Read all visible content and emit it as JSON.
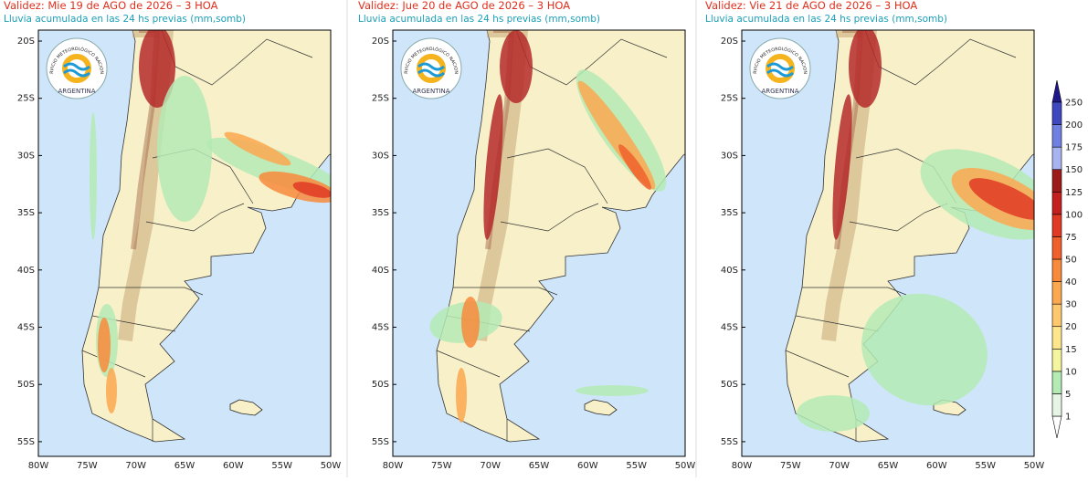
{
  "panels": [
    {
      "title": "Validez: Mie 19 de AGO de 2026 – 3 HOA",
      "subtitle": "Lluvia acumulada en las 24 hs previas (mm,somb)"
    },
    {
      "title": "Validez: Jue 20 de AGO de 2026 – 3 HOA",
      "subtitle": "Lluvia acumulada en las 24 hs previas (mm,somb)"
    },
    {
      "title": "Validez: Vie 21 de AGO de 2026 – 3 HOA",
      "subtitle": "Lluvia acumulada en las 24 hs previas (mm,somb)"
    }
  ],
  "latitude_labels": [
    "20S",
    "25S",
    "30S",
    "35S",
    "40S",
    "45S",
    "50S",
    "55S"
  ],
  "longitude_labels": [
    "80W",
    "75W",
    "70W",
    "65W",
    "60W",
    "55W",
    "50W"
  ],
  "logo": {
    "ring_text": "SERVICIO METEOROLÓGICO NACIONAL",
    "country": "ARGENTINA"
  },
  "colorbar": {
    "levels": [
      1,
      5,
      10,
      15,
      20,
      30,
      40,
      50,
      75,
      100,
      125,
      150,
      175,
      200,
      250
    ],
    "colors": [
      "#e6f5e6",
      "#b4eab4",
      "#f5f5a0",
      "#fde68c",
      "#fdc86e",
      "#fba850",
      "#f88a3c",
      "#f0602c",
      "#e03a24",
      "#c42020",
      "#9c1a1a",
      "#a8b4f0",
      "#7080e0",
      "#4048c0"
    ],
    "under_color": "#ffffff",
    "over_color": "#20188c"
  }
}
